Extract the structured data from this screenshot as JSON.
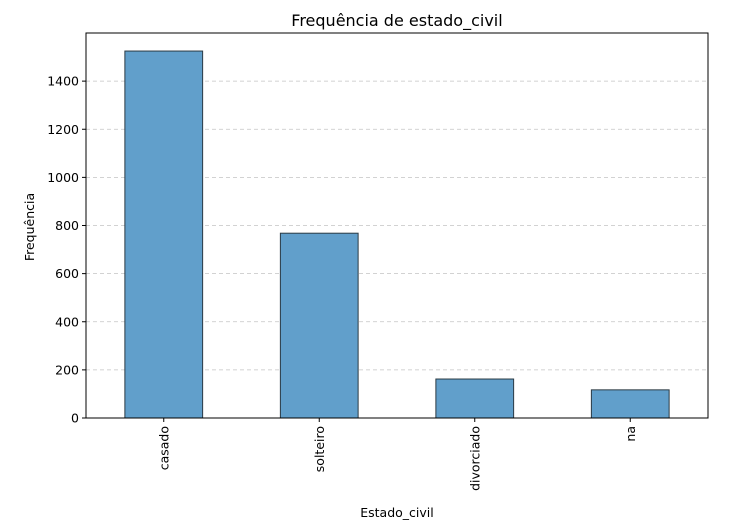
{
  "chart_data": {
    "type": "bar",
    "title": "Frequência de estado_civil",
    "xlabel": "Estado_civil",
    "ylabel": "Frequência",
    "categories": [
      "casado",
      "solteiro",
      "divorciado",
      "na"
    ],
    "values": [
      1525,
      768,
      162,
      117
    ],
    "ylim": [
      0,
      1600
    ],
    "yticks": [
      0,
      200,
      400,
      600,
      800,
      1000,
      1200,
      1400
    ],
    "grid": "y-dashed",
    "bar_color": "#619fcb",
    "bar_edge_color": "#2b3a44",
    "x_tick_rotation": "vertical"
  }
}
